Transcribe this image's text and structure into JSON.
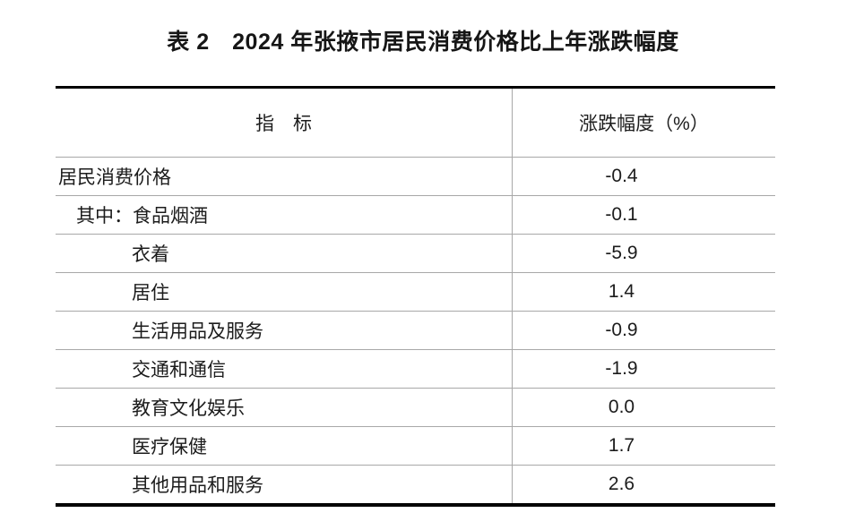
{
  "title": "表 2　2024 年张掖市居民消费价格比上年涨跌幅度",
  "table": {
    "headers": {
      "indicator": "指　标",
      "change": "涨跌幅度（%）"
    },
    "rows": [
      {
        "label": "居民消费价格",
        "value": "-0.4",
        "indent": 0
      },
      {
        "label": "其中：食品烟酒",
        "value": "-0.1",
        "indent": 1
      },
      {
        "label": "衣着",
        "value": "-5.9",
        "indent": 2
      },
      {
        "label": "居住",
        "value": "1.4",
        "indent": 2
      },
      {
        "label": "生活用品及服务",
        "value": "-0.9",
        "indent": 2
      },
      {
        "label": "交通和通信",
        "value": "-1.9",
        "indent": 2
      },
      {
        "label": "教育文化娱乐",
        "value": "0.0",
        "indent": 2
      },
      {
        "label": "医疗保健",
        "value": "1.7",
        "indent": 2
      },
      {
        "label": "其他用品和服务",
        "value": "2.6",
        "indent": 2
      }
    ]
  },
  "colors": {
    "rule_thick": "#000000",
    "rule_thin": "#a8a8a8",
    "text": "#1c1c1c"
  }
}
